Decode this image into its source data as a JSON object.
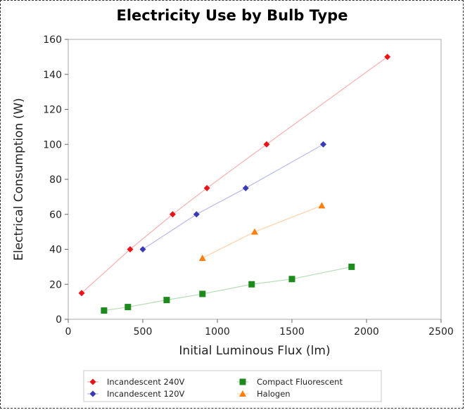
{
  "chart_data": {
    "type": "scatter",
    "title": "Electricity Use by Bulb Type",
    "xlabel": "Initial Luminous Flux (lm)",
    "ylabel": "Electrical Consumption (W)",
    "xlim": [
      0,
      2500
    ],
    "ylim": [
      0,
      160
    ],
    "xticks": [
      0,
      500,
      1000,
      1500,
      2000,
      2500
    ],
    "yticks": [
      0,
      20,
      40,
      60,
      80,
      100,
      120,
      140,
      160
    ],
    "grid": false,
    "legend_position": "bottom, below plot",
    "series": [
      {
        "name": "Incandescent 240V",
        "color": "#e8141a",
        "line_color": "#f7b0b0",
        "marker": "diamond",
        "points": [
          [
            90,
            15
          ],
          [
            415,
            40
          ],
          [
            700,
            60
          ],
          [
            930,
            75
          ],
          [
            1330,
            100
          ],
          [
            2140,
            150
          ]
        ]
      },
      {
        "name": "Incandescent 120V",
        "color": "#3a3ab8",
        "line_color": "#b9b9ea",
        "marker": "diamond",
        "points": [
          [
            500,
            40
          ],
          [
            860,
            60
          ],
          [
            1190,
            75
          ],
          [
            1710,
            100
          ]
        ]
      },
      {
        "name": "Compact Fluorescent",
        "color": "#1e8a1e",
        "line_color": "#b4deb4",
        "marker": "square",
        "points": [
          [
            240,
            5
          ],
          [
            400,
            7
          ],
          [
            660,
            11
          ],
          [
            900,
            14.5
          ],
          [
            1230,
            20
          ],
          [
            1500,
            23
          ],
          [
            1900,
            30
          ]
        ]
      },
      {
        "name": "Halogen",
        "color": "#ff7f0e",
        "line_color": "#ffd2a8",
        "marker": "triangle",
        "points": [
          [
            900,
            35
          ],
          [
            1250,
            50
          ],
          [
            1700,
            65
          ]
        ]
      }
    ]
  }
}
